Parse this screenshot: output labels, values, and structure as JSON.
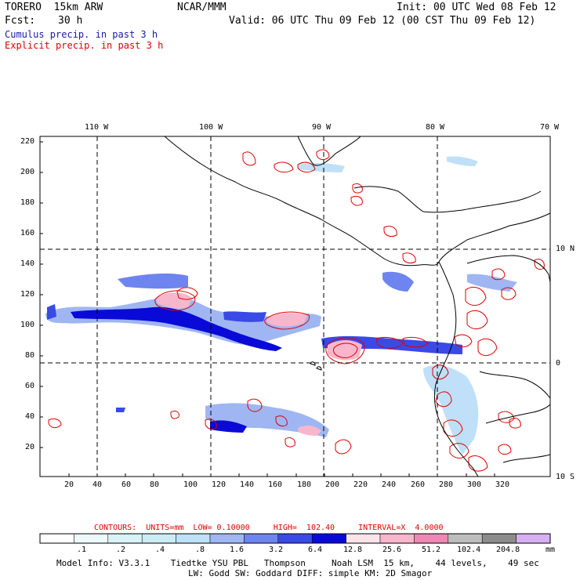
{
  "header": {
    "model": "TORERO  15km ARW",
    "org": "NCAR/MMM",
    "init": "Init: 00 UTC Wed 08 Feb 12",
    "fcst_label": "Fcst:",
    "fcst_value": "30 h",
    "valid": "Valid: 06 UTC Thu 09 Feb 12 (00 CST Thu 09 Feb 12)",
    "cumulus": "Cumulus precip. in past 3 h",
    "explicit": "Explicit precip. in past 3 h"
  },
  "axes": {
    "top_lon": [
      "110 W",
      "100 W",
      "90 W",
      "80 W",
      "70 W"
    ],
    "right_lat": [
      "10 N",
      "0",
      "10 S"
    ],
    "left_y": [
      "220",
      "200",
      "180",
      "160",
      "140",
      "120",
      "100",
      "80",
      "60",
      "40",
      "20"
    ],
    "bottom_x": [
      "20",
      "40",
      "60",
      "80",
      "100",
      "120",
      "140",
      "160",
      "180",
      "200",
      "220",
      "240",
      "260",
      "280",
      "300",
      "320"
    ]
  },
  "contour_line": "CONTOURS:  UNITS=mm  LOW= 0.10000     HIGH=  102.40     INTERVAL=X  4.0000",
  "colorbar": {
    "colors": [
      "#ffffff",
      "#eef8ff",
      "#d9f2f8",
      "#cbecf4",
      "#bfe0f8",
      "#9fb6f2",
      "#6e84ee",
      "#3a4ae6",
      "#0a0ad8",
      "#fde4ea",
      "#f8b6cc",
      "#ef88b4",
      "#bdbdbd",
      "#8c8c8c",
      "#d6b0f2"
    ],
    "labels": [
      ".1",
      ".2",
      ".4",
      ".8",
      "1.6",
      "3.2",
      "6.4",
      "12.8",
      "25.6",
      "51.2",
      "102.4",
      "204.8"
    ],
    "unit": "mm"
  },
  "model_info": {
    "line1": "Model Info: V3.3.1    Tiedtke YSU PBL   Thompson     Noah LSM  15 km,    44 levels,    49 sec",
    "line2": "LW: Godd SW: Goddard DIFF: simple KM: 2D Smagor"
  },
  "colors": {
    "cumulus": "#1a1aa8",
    "explicit": "#e00000"
  }
}
